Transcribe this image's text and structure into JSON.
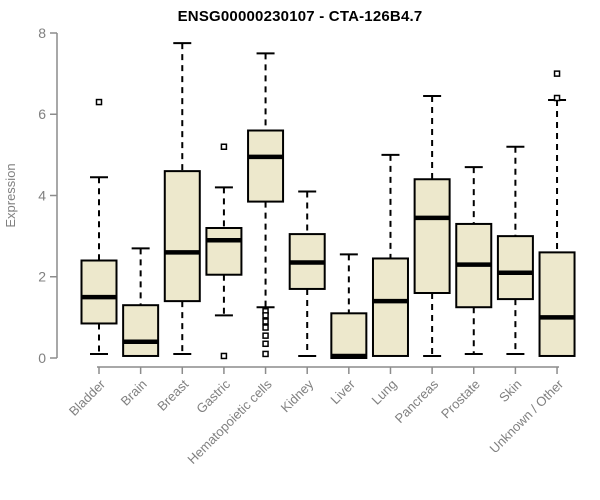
{
  "chart_data": {
    "type": "boxplot",
    "title": "ENSG00000230107 - CTA-126B4.7",
    "xlabel": "",
    "ylabel": "Expression",
    "ylim": [
      0,
      8
    ],
    "yticks": [
      0,
      2,
      4,
      6,
      8
    ],
    "grid": false,
    "legend": false,
    "categories": [
      "Bladder",
      "Brain",
      "Breast",
      "Gastric",
      "Hematopoietic cells",
      "Kidney",
      "Liver",
      "Lung",
      "Pancreas",
      "Prostate",
      "Skin",
      "Unknown / Other"
    ],
    "series": [
      {
        "name": "Bladder",
        "whisker_low": 0.1,
        "q1": 0.85,
        "median": 1.5,
        "q3": 2.4,
        "whisker_high": 4.45,
        "outliers": [
          6.3
        ]
      },
      {
        "name": "Brain",
        "whisker_low": 0.05,
        "q1": 0.05,
        "median": 0.4,
        "q3": 1.3,
        "whisker_high": 2.7,
        "outliers": []
      },
      {
        "name": "Breast",
        "whisker_low": 0.1,
        "q1": 1.4,
        "median": 2.6,
        "q3": 4.6,
        "whisker_high": 7.75,
        "outliers": []
      },
      {
        "name": "Gastric",
        "whisker_low": 1.05,
        "q1": 2.05,
        "median": 2.9,
        "q3": 3.2,
        "whisker_high": 4.2,
        "outliers": [
          5.2,
          0.05
        ]
      },
      {
        "name": "Hematopoietic cells",
        "whisker_low": 1.25,
        "q1": 3.85,
        "median": 4.95,
        "q3": 5.6,
        "whisker_high": 7.5,
        "outliers": [
          1.15,
          1.05,
          0.9,
          0.75,
          0.55,
          0.35,
          0.1
        ]
      },
      {
        "name": "Kidney",
        "whisker_low": 0.05,
        "q1": 1.7,
        "median": 2.35,
        "q3": 3.05,
        "whisker_high": 4.1,
        "outliers": []
      },
      {
        "name": "Liver",
        "whisker_low": 0.0,
        "q1": 0.0,
        "median": 0.05,
        "q3": 1.1,
        "whisker_high": 2.55,
        "outliers": []
      },
      {
        "name": "Lung",
        "whisker_low": 0.05,
        "q1": 0.05,
        "median": 1.4,
        "q3": 2.45,
        "whisker_high": 5.0,
        "outliers": []
      },
      {
        "name": "Pancreas",
        "whisker_low": 0.05,
        "q1": 1.6,
        "median": 3.45,
        "q3": 4.4,
        "whisker_high": 6.45,
        "outliers": []
      },
      {
        "name": "Prostate",
        "whisker_low": 0.1,
        "q1": 1.25,
        "median": 2.3,
        "q3": 3.3,
        "whisker_high": 4.7,
        "outliers": []
      },
      {
        "name": "Skin",
        "whisker_low": 0.1,
        "q1": 1.45,
        "median": 2.1,
        "q3": 3.0,
        "whisker_high": 5.2,
        "outliers": []
      },
      {
        "name": "Unknown / Other",
        "whisker_low": 0.05,
        "q1": 0.05,
        "median": 1.0,
        "q3": 2.6,
        "whisker_high": 6.35,
        "outliers": [
          7.0,
          6.4
        ]
      }
    ],
    "colors": {
      "box_fill": "#EDE8CC",
      "box_stroke": "#000000",
      "median": "#000000",
      "whisker": "#000000",
      "outlier_stroke": "#000000",
      "outlier_fill": "#FFFFFF",
      "axis": "#8C8C8C",
      "tick_label": "#808080",
      "title": "#000000",
      "background": "#FFFFFF"
    }
  }
}
